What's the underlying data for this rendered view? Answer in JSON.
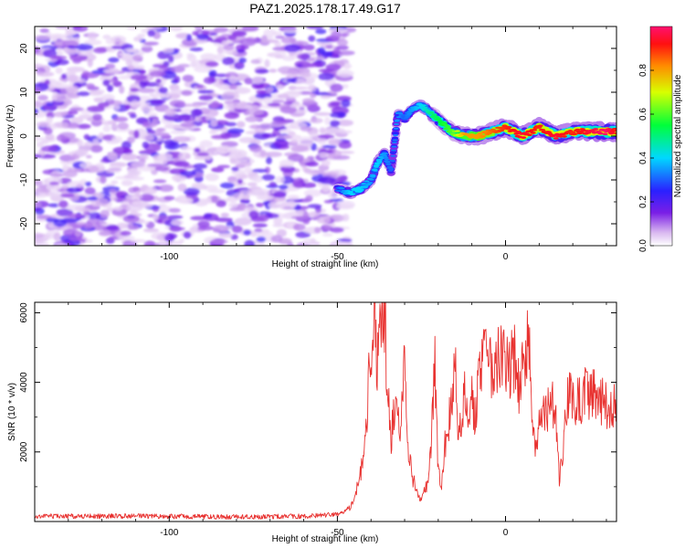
{
  "chart_data": [
    {
      "type": "heatmap",
      "title": "PAZ1.2025.178.17.49.G17",
      "xlabel": "Height of straight line (km)",
      "ylabel": "Frequency (Hz)",
      "xlim": [
        -140,
        33
      ],
      "ylim": [
        -25,
        25
      ],
      "xticks": [
        -100,
        -50,
        0
      ],
      "yticks": [
        -20,
        -10,
        0,
        10,
        20
      ],
      "colorbar": {
        "label": "Normalized spectral amplitude",
        "range": [
          0,
          1
        ],
        "ticks": [
          0.0,
          0.2,
          0.4,
          0.6,
          0.8
        ]
      },
      "noise_region_x": [
        -140,
        -47
      ],
      "ridge": {
        "x": [
          -50,
          -46,
          -43,
          -40,
          -38,
          -36,
          -34,
          -32,
          -30,
          -28,
          -25,
          -22,
          -19,
          -16,
          -12,
          -8,
          -4,
          0,
          5,
          10,
          15,
          20,
          25,
          30,
          33
        ],
        "freq": [
          -12,
          -13,
          -12,
          -10,
          -6,
          -4,
          -8,
          5,
          4,
          6,
          7,
          5,
          3,
          1,
          0,
          0,
          1,
          2,
          0,
          2,
          0,
          1,
          1,
          1,
          1
        ],
        "amplitude": [
          0.3,
          0.4,
          0.4,
          0.35,
          0.4,
          0.35,
          0.3,
          0.35,
          0.3,
          0.35,
          0.4,
          0.5,
          0.55,
          0.6,
          0.8,
          0.8,
          0.85,
          0.9,
          0.95,
          0.9,
          0.95,
          0.9,
          0.95,
          1.0,
          0.9
        ]
      }
    },
    {
      "type": "line",
      "xlabel": "Height of straight line (km)",
      "ylabel": "SNR (10 * v/v)",
      "xlim": [
        -140,
        33
      ],
      "ylim": [
        0,
        6300
      ],
      "xticks": [
        -100,
        -50,
        0
      ],
      "yticks": [
        2000,
        4000,
        6000
      ],
      "series": [
        {
          "color": "#e8312f",
          "x": [
            -140,
            -120,
            -110,
            -100,
            -80,
            -60,
            -50,
            -47,
            -45,
            -43,
            -42,
            -41,
            -40,
            -39,
            -38,
            -37,
            -36,
            -35,
            -34,
            -33,
            -32,
            -31,
            -30,
            -29,
            -28,
            -27,
            -26,
            -25,
            -24,
            -23,
            -22,
            -21,
            -20,
            -19,
            -18,
            -17,
            -16,
            -15,
            -14,
            -13,
            -12,
            -11,
            -10,
            -9,
            -8,
            -7,
            -6,
            -5,
            -4,
            -3,
            -2,
            -1,
            0,
            1,
            2,
            3,
            4,
            5,
            6,
            7,
            8,
            9,
            10,
            11,
            12,
            13,
            14,
            15,
            16,
            17,
            18,
            19,
            20,
            22,
            24,
            26,
            28,
            30,
            33
          ],
          "y": [
            150,
            150,
            160,
            150,
            130,
            150,
            200,
            350,
            600,
            1500,
            2000,
            3500,
            5000,
            6000,
            4500,
            5500,
            6000,
            3800,
            2500,
            3200,
            3000,
            2800,
            4500,
            2200,
            1500,
            1000,
            800,
            600,
            900,
            1200,
            2500,
            4500,
            1500,
            1000,
            2200,
            2800,
            3500,
            4800,
            2500,
            3000,
            3800,
            3200,
            3500,
            2800,
            4200,
            4500,
            4800,
            4200,
            4500,
            4400,
            4900,
            4600,
            4500,
            4300,
            4700,
            4600,
            3800,
            4300,
            4800,
            5200,
            2500,
            2000,
            2800,
            3000,
            3200,
            3400,
            3300,
            2800,
            1200,
            1800,
            3500,
            3600,
            3300,
            3500,
            3700,
            3600,
            3500,
            3400,
            3500
          ]
        }
      ]
    }
  ]
}
